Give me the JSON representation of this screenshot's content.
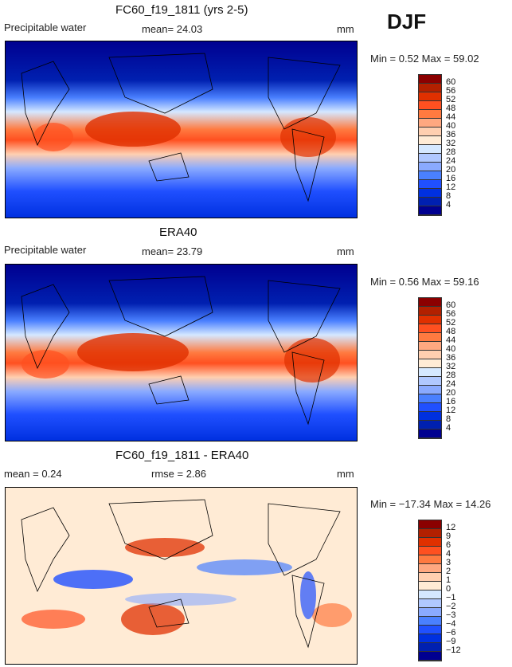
{
  "season": "DJF",
  "panels": [
    {
      "title": "FC60_f19_1811 (yrs 2-5)",
      "variable": "Precipitable water",
      "stat1": "mean=  24.03",
      "stat2": "",
      "units": "mm",
      "minmax": "Min =    0.52 Max =   59.02",
      "colorbar": {
        "labels": [
          "60",
          "56",
          "52",
          "48",
          "44",
          "40",
          "36",
          "32",
          "28",
          "24",
          "20",
          "16",
          "12",
          "8",
          "4"
        ]
      }
    },
    {
      "title": "ERA40",
      "variable": "Precipitable water",
      "stat1": "mean=  23.79",
      "stat2": "",
      "units": "mm",
      "minmax": "Min =    0.56 Max =   59.16",
      "colorbar": {
        "labels": [
          "60",
          "56",
          "52",
          "48",
          "44",
          "40",
          "36",
          "32",
          "28",
          "24",
          "20",
          "16",
          "12",
          "8",
          "4"
        ]
      }
    },
    {
      "title": "FC60_f19_1811 - ERA40",
      "variable": "mean =   0.24",
      "stat1": "rmse =   2.86",
      "stat2": "",
      "units": "mm",
      "minmax": "Min = −17.34 Max =   14.26",
      "colorbar": {
        "labels": [
          "12",
          "9",
          "6",
          "4",
          "3",
          "2",
          "1",
          "0",
          "−1",
          "−2",
          "−3",
          "−4",
          "−6",
          "−9",
          "−12"
        ]
      }
    }
  ],
  "colors": [
    "#8b0000",
    "#b22000",
    "#e03000",
    "#ff5020",
    "#ff7a40",
    "#ffa880",
    "#ffcfb0",
    "#ffebd5",
    "#d5e8ff",
    "#b0c8ff",
    "#8aaaff",
    "#4a80ff",
    "#2050ff",
    "#0030e0",
    "#0020b0",
    "#000090"
  ]
}
